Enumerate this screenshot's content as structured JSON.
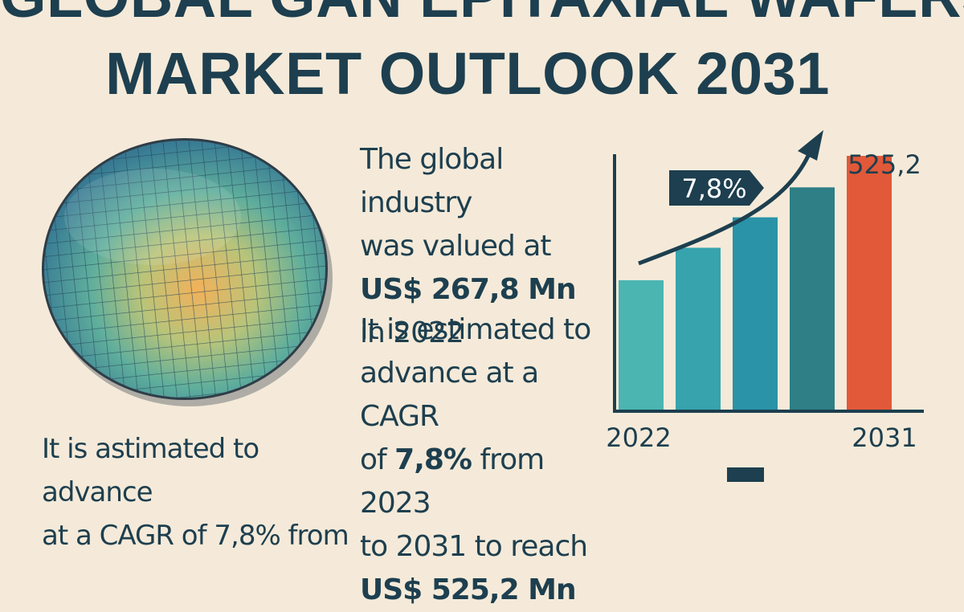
{
  "header": {
    "title_line1": "GLOBAL GAN EPITAXIAL WAFERS",
    "title_line2": "MARKET OUTLOOK 2031"
  },
  "copy": {
    "para1": {
      "line1": "The global industry",
      "line2": "was valued at",
      "value": "US$ 267,8 Mn",
      "line4": "in 2022"
    },
    "para2": {
      "line1": "It is estimated to",
      "line2": "advance at a CAGR",
      "of": "of",
      "cagr": "7,8%",
      "from": "from 2023",
      "line4": "to 2031 to reach",
      "value": "US$ 525,2 Mn"
    },
    "para3": {
      "line1": "It is astimated to advance",
      "line2": "at a CAGR of 7,8% from"
    }
  },
  "colors": {
    "background": "#f5ead9",
    "navy": "#1d3f4f",
    "bar_colors": [
      "#4bb5b2",
      "#37a3ad",
      "#2a93a8",
      "#2e7f86",
      "#e2593a"
    ]
  },
  "chart_data": {
    "type": "bar",
    "title": "",
    "x_labels": [
      "2022",
      "2031"
    ],
    "values": [
      267.8,
      335,
      398,
      460,
      525.2
    ],
    "top_label": "525,2",
    "growth_label": "7,8%",
    "ylim": [
      0,
      600
    ]
  }
}
